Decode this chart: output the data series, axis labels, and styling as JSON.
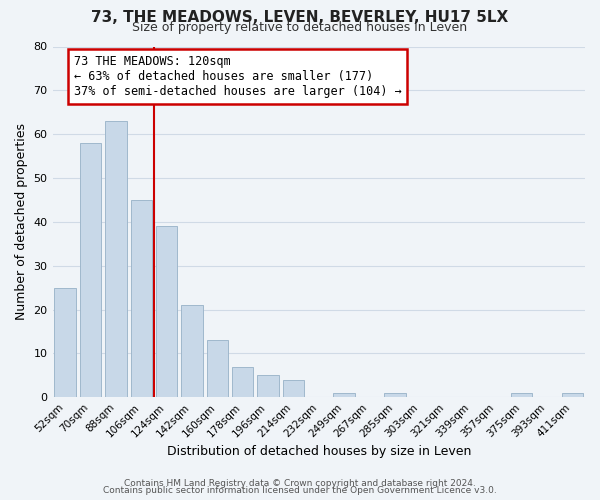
{
  "title": "73, THE MEADOWS, LEVEN, BEVERLEY, HU17 5LX",
  "subtitle": "Size of property relative to detached houses in Leven",
  "xlabel": "Distribution of detached houses by size in Leven",
  "ylabel": "Number of detached properties",
  "bar_labels": [
    "52sqm",
    "70sqm",
    "88sqm",
    "106sqm",
    "124sqm",
    "142sqm",
    "160sqm",
    "178sqm",
    "196sqm",
    "214sqm",
    "232sqm",
    "249sqm",
    "267sqm",
    "285sqm",
    "303sqm",
    "321sqm",
    "339sqm",
    "357sqm",
    "375sqm",
    "393sqm",
    "411sqm"
  ],
  "bar_values": [
    25,
    58,
    63,
    45,
    39,
    21,
    13,
    7,
    5,
    4,
    0,
    1,
    0,
    1,
    0,
    0,
    0,
    0,
    1,
    0,
    1
  ],
  "bar_color": "#c8d8e8",
  "bar_edge_color": "#a0b8cc",
  "vline_color": "#cc0000",
  "ylim": [
    0,
    80
  ],
  "yticks": [
    0,
    10,
    20,
    30,
    40,
    50,
    60,
    70,
    80
  ],
  "annotation_title": "73 THE MEADOWS: 120sqm",
  "annotation_line1": "← 63% of detached houses are smaller (177)",
  "annotation_line2": "37% of semi-detached houses are larger (104) →",
  "annotation_box_color": "#ffffff",
  "annotation_box_edge": "#cc0000",
  "footer1": "Contains HM Land Registry data © Crown copyright and database right 2024.",
  "footer2": "Contains public sector information licensed under the Open Government Licence v3.0.",
  "background_color": "#f0f4f8",
  "grid_color": "#d0dae6",
  "title_fontsize": 11,
  "subtitle_fontsize": 9
}
